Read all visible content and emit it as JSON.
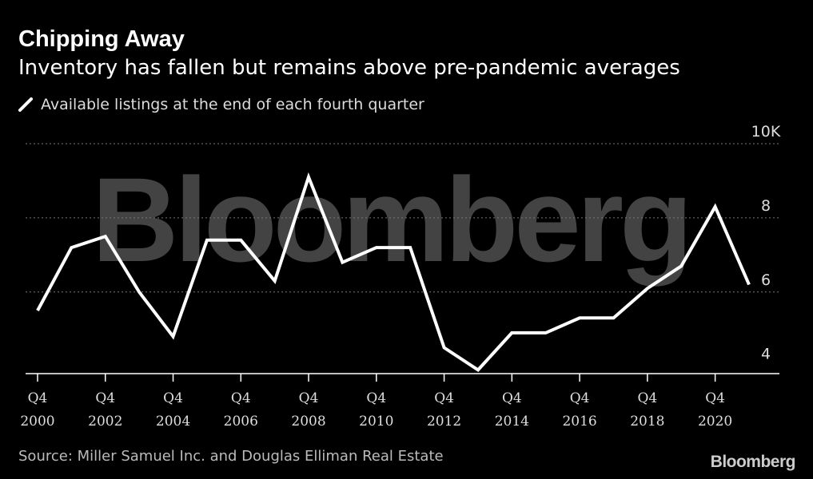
{
  "header": {
    "title": "Chipping Away",
    "subtitle": "Inventory has fallen but remains above pre-pandemic averages"
  },
  "legend": {
    "label": "Available listings at the end of each fourth quarter",
    "color": "#ffffff"
  },
  "watermark": "Bloomberg",
  "footer": {
    "source": "Source: Miller Samuel Inc. and Douglas Elliman Real Estate",
    "brand": "Bloomberg"
  },
  "colors": {
    "background": "#000000",
    "line": "#ffffff",
    "grid": "#777777",
    "watermark": "#5a5a5a"
  },
  "chart_data": {
    "type": "line",
    "x": [
      2000,
      2001,
      2002,
      2003,
      2004,
      2005,
      2006,
      2007,
      2008,
      2009,
      2010,
      2011,
      2012,
      2013,
      2014,
      2015,
      2016,
      2017,
      2018,
      2019,
      2020,
      2021
    ],
    "series": [
      {
        "name": "Available listings at the end of each fourth quarter",
        "values": [
          5.5,
          7.2,
          7.5,
          6.0,
          4.8,
          7.4,
          7.4,
          6.3,
          9.1,
          6.8,
          7.2,
          7.2,
          4.5,
          3.9,
          4.9,
          4.9,
          5.3,
          5.3,
          6.1,
          6.7,
          8.3,
          6.2
        ]
      }
    ],
    "y_ticks": [
      {
        "value": 4,
        "label": "4"
      },
      {
        "value": 6,
        "label": "6"
      },
      {
        "value": 8,
        "label": "8"
      },
      {
        "value": 10,
        "label": "10K"
      }
    ],
    "x_ticks": [
      {
        "value": 2000,
        "top": "Q4",
        "bottom": "2000"
      },
      {
        "value": 2002,
        "top": "Q4",
        "bottom": "2002"
      },
      {
        "value": 2004,
        "top": "Q4",
        "bottom": "2004"
      },
      {
        "value": 2006,
        "top": "Q4",
        "bottom": "2006"
      },
      {
        "value": 2008,
        "top": "Q4",
        "bottom": "2008"
      },
      {
        "value": 2010,
        "top": "Q4",
        "bottom": "2010"
      },
      {
        "value": 2012,
        "top": "Q4",
        "bottom": "2012"
      },
      {
        "value": 2014,
        "top": "Q4",
        "bottom": "2014"
      },
      {
        "value": 2016,
        "top": "Q4",
        "bottom": "2016"
      },
      {
        "value": 2018,
        "top": "Q4",
        "bottom": "2018"
      },
      {
        "value": 2020,
        "top": "Q4",
        "bottom": "2020"
      }
    ],
    "ylim": [
      3.8,
      10
    ],
    "xlim": [
      2000,
      2021
    ],
    "grid": true,
    "legend_position": "top-left"
  }
}
